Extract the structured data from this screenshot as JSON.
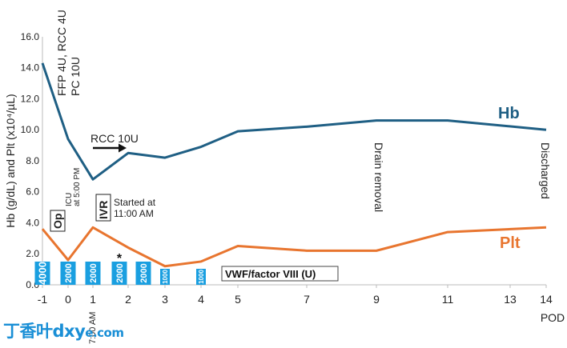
{
  "chart_data": {
    "type": "line",
    "ylabel": "Hb (g/dL) and Plt (x10⁴/µL)",
    "xlabel": "POD",
    "ylim": [
      0,
      16
    ],
    "y_ticks": [
      "0.0",
      "2.0",
      "4.0",
      "6.0",
      "8.0",
      "10.0",
      "12.0",
      "14.0",
      "16.0"
    ],
    "x_ticks": [
      "-1",
      "0",
      "1",
      "2",
      "3",
      "4",
      "5",
      "7",
      "9",
      "11",
      "13",
      "14"
    ],
    "grid": false,
    "series": [
      {
        "name": "Hb",
        "color": "#1f5f84",
        "points": [
          {
            "x": "-1",
            "y": 14.3
          },
          {
            "x": "0",
            "y": 9.4
          },
          {
            "x": "1",
            "y": 6.8
          },
          {
            "x": "2",
            "y": 8.5
          },
          {
            "x": "3",
            "y": 8.2
          },
          {
            "x": "4",
            "y": 8.9
          },
          {
            "x": "5",
            "y": 9.9
          },
          {
            "x": "7",
            "y": 10.2
          },
          {
            "x": "9",
            "y": 10.6
          },
          {
            "x": "11",
            "y": 10.6
          },
          {
            "x": "14",
            "y": 10.0
          }
        ]
      },
      {
        "name": "Plt",
        "color": "#e8752f",
        "points": [
          {
            "x": "-1",
            "y": 3.6
          },
          {
            "x": "0",
            "y": 1.6
          },
          {
            "x": "1",
            "y": 3.7
          },
          {
            "x": "2",
            "y": 2.4
          },
          {
            "x": "3",
            "y": 1.2
          },
          {
            "x": "4",
            "y": 1.5
          },
          {
            "x": "5",
            "y": 2.5
          },
          {
            "x": "7",
            "y": 2.2
          },
          {
            "x": "9",
            "y": 2.2
          },
          {
            "x": "11",
            "y": 3.4
          },
          {
            "x": "14",
            "y": 3.7
          }
        ]
      }
    ],
    "factor_bars": {
      "color": "#1a9fe0",
      "legend": "VWF/factor VIII (U)",
      "asterisk": "*",
      "bars": [
        {
          "x": "-1",
          "dose": 4000
        },
        {
          "x": "0",
          "dose": 2000
        },
        {
          "x": "1",
          "dose": 2000
        },
        {
          "x": "2a",
          "dose": 2000
        },
        {
          "x": "2b",
          "dose": 2000
        },
        {
          "x": "3",
          "dose": 1000
        },
        {
          "x": "4",
          "dose": 1000
        }
      ]
    },
    "annotations": {
      "transfusion": [
        "FFP 4U, RCC 4U",
        "PC 10U"
      ],
      "rcc": "RCC 10U",
      "op_box": "Op",
      "icu": [
        "ICU",
        "at 5:00 PM"
      ],
      "ivr_box": "IVR",
      "ivr_note": [
        "Started at",
        "11:00 AM"
      ],
      "time_1": "7:00 AM",
      "drain": "Drain removal",
      "discharged": "Discharged"
    }
  },
  "watermark": {
    "main": "丁香叶dxy",
    "domain": "e.com"
  }
}
